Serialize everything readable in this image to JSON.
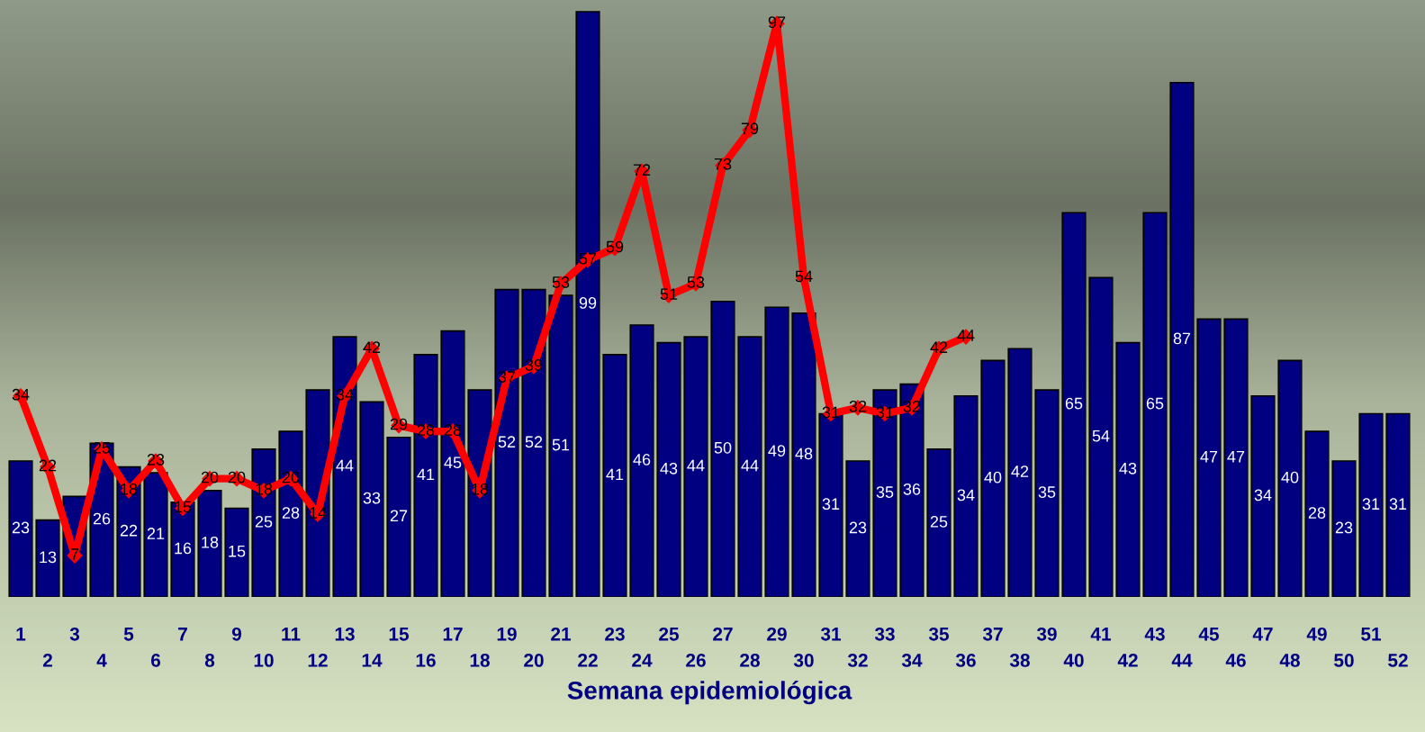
{
  "chart_data": {
    "type": "bar",
    "xlabel": "Semana epidemiológica",
    "categories": [
      "1",
      "2",
      "3",
      "4",
      "5",
      "6",
      "7",
      "8",
      "9",
      "10",
      "11",
      "12",
      "13",
      "14",
      "15",
      "16",
      "17",
      "18",
      "19",
      "20",
      "21",
      "22",
      "23",
      "24",
      "25",
      "26",
      "27",
      "28",
      "29",
      "30",
      "31",
      "32",
      "33",
      "34",
      "35",
      "36",
      "37",
      "38",
      "39",
      "40",
      "41",
      "42",
      "43",
      "44",
      "45",
      "46",
      "47",
      "48",
      "49",
      "50",
      "51",
      "52"
    ],
    "series": [
      {
        "color": "#000080",
        "values": [
          23,
          13,
          17,
          26,
          22,
          21,
          16,
          18,
          15,
          25,
          28,
          35,
          44,
          33,
          27,
          41,
          45,
          35,
          52,
          52,
          51,
          99,
          41,
          46,
          43,
          44,
          50,
          44,
          49,
          48,
          31,
          23,
          35,
          36,
          25,
          34,
          40,
          42,
          35,
          65,
          54,
          43,
          65,
          87,
          47,
          47,
          34,
          40,
          28,
          23,
          31,
          31
        ],
        "value_labels": [
          "23",
          "13",
          null,
          "26",
          "22",
          "21",
          "16",
          "18",
          "15",
          "25",
          "28",
          null,
          "44",
          "33",
          "27",
          "41",
          "45",
          null,
          "52",
          "52",
          "51",
          "99",
          "41",
          "46",
          "43",
          "44",
          "50",
          "44",
          "49",
          "48",
          "31",
          "23",
          "35",
          "36",
          "25",
          "34",
          "40",
          "42",
          "35",
          "65",
          "54",
          "43",
          "65",
          "87",
          "47",
          "47",
          "34",
          "40",
          "28",
          "23",
          "31",
          "31"
        ]
      },
      {
        "type": "line",
        "color": "#ff0000",
        "marker": "diamond",
        "values": [
          34,
          22,
          7,
          25,
          18,
          23,
          15,
          20,
          20,
          18,
          20,
          14,
          34,
          42,
          29,
          28,
          28,
          18,
          37,
          39,
          53,
          57,
          59,
          72,
          51,
          53,
          73,
          79,
          97,
          54,
          31,
          32,
          31,
          32,
          42,
          44,
          null,
          null,
          null,
          null,
          null,
          null,
          null,
          null,
          null,
          null,
          null,
          null,
          null,
          null,
          null,
          null
        ]
      }
    ],
    "data_labels": true,
    "grid": false,
    "legend": false
  }
}
